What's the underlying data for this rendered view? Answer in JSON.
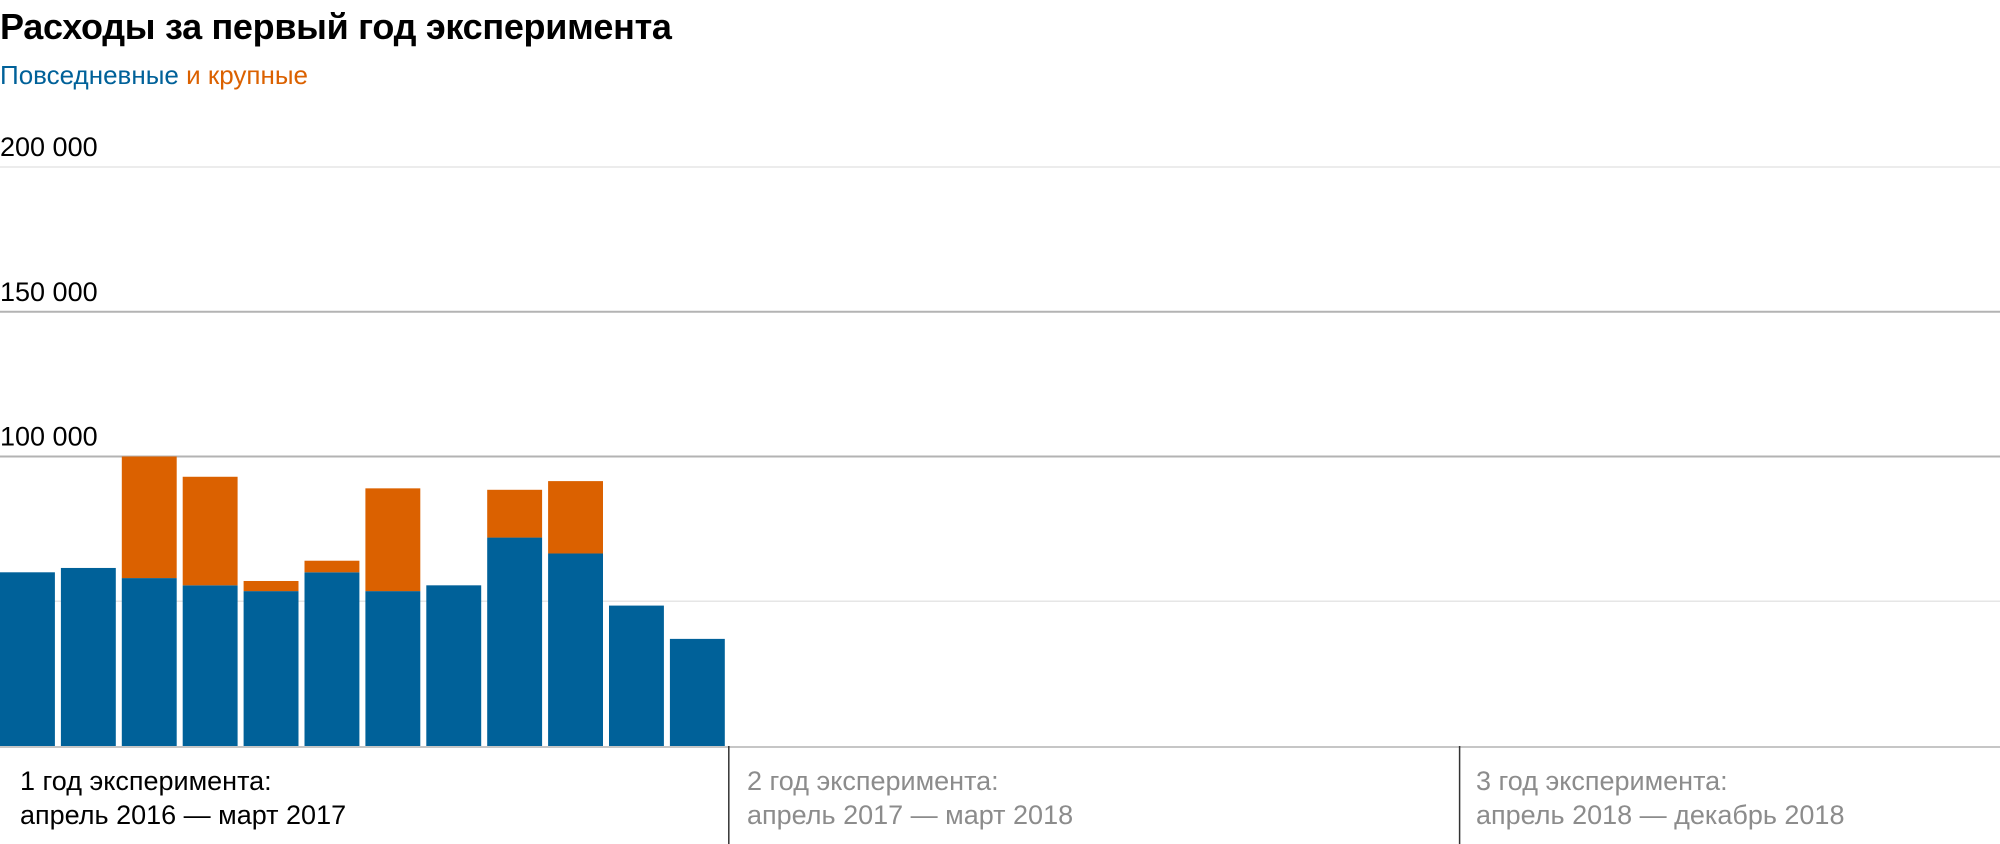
{
  "title": "Расходы за первый год эксперимента",
  "subtitle": {
    "everyday_text": "Повседневные",
    "large_text": "и крупные"
  },
  "colors": {
    "everyday": "#006199",
    "large": "#db6100",
    "grid_major": "#b3b3b3",
    "grid_minor": "#e6e6e6",
    "inactive_text": "#8c8c8c",
    "active_text": "#000000",
    "separator": "#333333"
  },
  "chart_data": {
    "type": "bar",
    "stacked": true,
    "ylim": [
      0,
      200000
    ],
    "y_ticks": [
      {
        "value": 200000,
        "label": "200 000",
        "major": false
      },
      {
        "value": 150000,
        "label": "150 000",
        "major": true
      },
      {
        "value": 100000,
        "label": "100 000",
        "major": true
      },
      {
        "value": 50000,
        "label": "",
        "major": false
      }
    ],
    "x_slots": 36,
    "series": [
      {
        "key": "everyday",
        "name": "Повседневные",
        "values": [
          60000,
          61500,
          58000,
          55500,
          53500,
          60000,
          53500,
          55500,
          72000,
          66500,
          48500,
          37000
        ]
      },
      {
        "key": "large",
        "name": "и крупные",
        "values": [
          0,
          0,
          42000,
          37500,
          3500,
          4000,
          35500,
          0,
          16500,
          25000,
          0,
          0
        ]
      }
    ],
    "periods": [
      {
        "line1": "1 год эксперимента:",
        "line2": "апрель 2016 — март 2017",
        "active": true
      },
      {
        "line1": "2 год эксперимента:",
        "line2": "апрель 2017 — март 2018",
        "active": false
      },
      {
        "line1": "3 год эксперимента:",
        "line2": "апрель 2018 — декабрь 2018",
        "active": false
      }
    ]
  }
}
